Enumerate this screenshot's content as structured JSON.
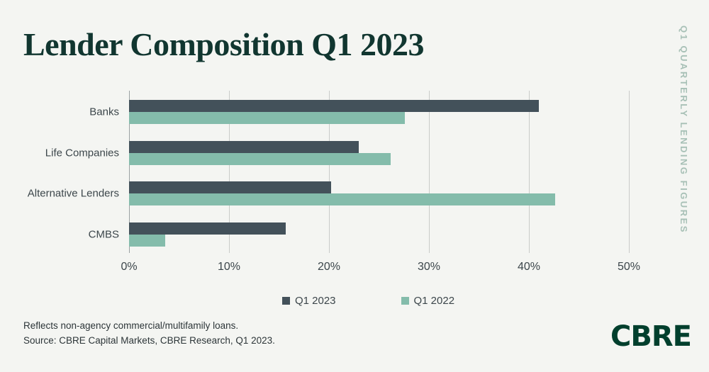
{
  "title": "Lender Composition Q1 2023",
  "side_label": "Q1 QUARTERLY LENDING FIGURES",
  "logo_text": "CBRE",
  "footer": {
    "note": "Reflects non-agency commercial/multifamily loans.",
    "source": "Source: CBRE Capital Markets, CBRE Research, Q1 2023."
  },
  "colors": {
    "background": "#f4f5f2",
    "title_text": "#113630",
    "bar_q1_2023": "#43515a",
    "bar_q1_2022": "#84bcab",
    "gridline": "#c9cbc9",
    "axis_line": "#9aa1a2",
    "label_text": "#3c464b",
    "tick_text": "#3c464b",
    "footer_text": "#2c3538",
    "side_label": "#a7c0b6",
    "logo": "#003f2d"
  },
  "chart_data": {
    "type": "bar",
    "orientation": "horizontal",
    "title": "Lender Composition Q1 2023",
    "categories": [
      "Banks",
      "Life Companies",
      "Alternative Lenders",
      "CMBS"
    ],
    "series": [
      {
        "name": "Q1 2023",
        "color": "#43515a",
        "values": [
          41.0,
          23.0,
          20.2,
          15.7
        ]
      },
      {
        "name": "Q1 2022",
        "color": "#84bcab",
        "values": [
          27.6,
          26.2,
          42.6,
          3.6
        ]
      }
    ],
    "xlabel": "",
    "ylabel": "",
    "xlim": [
      0,
      50
    ],
    "x_ticks": [
      "0%",
      "10%",
      "20%",
      "30%",
      "40%",
      "50%"
    ],
    "grid": true,
    "legend_position": "bottom"
  }
}
